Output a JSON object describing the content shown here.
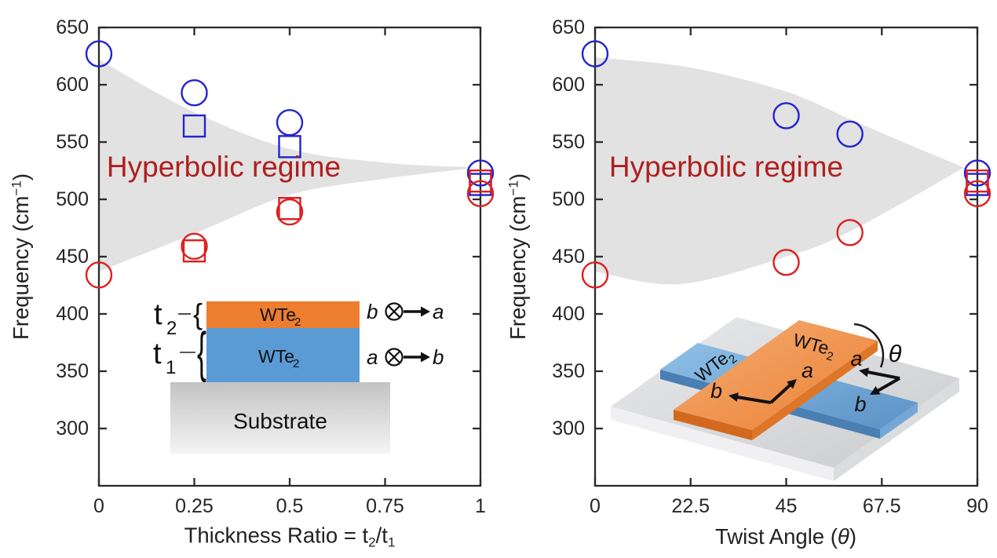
{
  "figure": {
    "band_color": "#E2E2E2",
    "regime_color": "#B01E1E",
    "marker_colors": {
      "blue": "#2323D0",
      "red": "#DE1E1E"
    },
    "axis_color": "#2B2B2B"
  },
  "chart_data": [
    {
      "type": "scatter",
      "panel": "left",
      "regime_label": "Hyperbolic regime",
      "xlabel_parts": [
        {
          "t": "Thickness Ratio = t"
        },
        {
          "t": "2",
          "style": "sub"
        },
        {
          "t": "/t"
        },
        {
          "t": "1",
          "style": "sub"
        }
      ],
      "ylabel_parts": [
        {
          "t": "Frequency (cm"
        },
        {
          "t": "−1",
          "style": "sup"
        },
        {
          "t": ")"
        }
      ],
      "xlim": [
        0,
        1
      ],
      "ylim": [
        250,
        650
      ],
      "grid": false,
      "legend": false,
      "xticks": [
        {
          "v": 0,
          "label": "0"
        },
        {
          "v": 0.25,
          "label": "0.25"
        },
        {
          "v": 0.5,
          "label": "0.5"
        },
        {
          "v": 0.75,
          "label": "0.75"
        },
        {
          "v": 1,
          "label": "1"
        }
      ],
      "yticks": [
        {
          "v": 300,
          "label": "300"
        },
        {
          "v": 350,
          "label": "350"
        },
        {
          "v": 400,
          "label": "400"
        },
        {
          "v": 450,
          "label": "450"
        },
        {
          "v": 500,
          "label": "500"
        },
        {
          "v": 550,
          "label": "550"
        },
        {
          "v": 600,
          "label": "600"
        },
        {
          "v": 650,
          "label": "650"
        }
      ],
      "series": [
        {
          "name": "blue-squares",
          "marker": "square",
          "color": "blue",
          "points": [
            [
              0.25,
              564
            ],
            [
              0.5,
              546
            ],
            [
              1,
              513
            ]
          ]
        },
        {
          "name": "blue-circles",
          "marker": "circle",
          "color": "blue",
          "points": [
            [
              0,
              627
            ],
            [
              0.25,
              593
            ],
            [
              0.5,
              567
            ],
            [
              1,
              523
            ]
          ]
        },
        {
          "name": "red-squares",
          "marker": "square",
          "color": "red",
          "points": [
            [
              0.25,
              455
            ],
            [
              0.5,
              492
            ],
            [
              1,
              516
            ]
          ]
        },
        {
          "name": "red-circles",
          "marker": "circle",
          "color": "red",
          "points": [
            [
              0,
              434
            ],
            [
              0.25,
              459
            ],
            [
              0.5,
              489
            ],
            [
              1,
              505
            ]
          ]
        }
      ],
      "band": {
        "top": [
          [
            0,
            622
          ],
          [
            0.25,
            576
          ],
          [
            0.5,
            544
          ],
          [
            0.75,
            532
          ],
          [
            0.97,
            528
          ]
        ],
        "bottom": [
          [
            0,
            437
          ],
          [
            0.25,
            470
          ],
          [
            0.5,
            504
          ],
          [
            0.75,
            518
          ],
          [
            0.97,
            527
          ]
        ]
      }
    },
    {
      "type": "scatter",
      "panel": "right",
      "regime_label": "Hyperbolic regime",
      "xlabel_parts": [
        {
          "t": "Twist Angle ("
        },
        {
          "t": "θ",
          "style": "italic"
        },
        {
          "t": ")"
        }
      ],
      "ylabel_parts": [
        {
          "t": "Frequency (cm"
        },
        {
          "t": "−1",
          "style": "sup"
        },
        {
          "t": ")"
        }
      ],
      "xlim": [
        0,
        90
      ],
      "ylim": [
        250,
        650
      ],
      "grid": false,
      "legend": false,
      "xticks": [
        {
          "v": 0,
          "label": "0"
        },
        {
          "v": 22.5,
          "label": "22.5"
        },
        {
          "v": 45,
          "label": "45"
        },
        {
          "v": 67.5,
          "label": "67.5"
        },
        {
          "v": 90,
          "label": "90"
        }
      ],
      "yticks": [
        {
          "v": 300,
          "label": "300"
        },
        {
          "v": 350,
          "label": "350"
        },
        {
          "v": 400,
          "label": "400"
        },
        {
          "v": 450,
          "label": "450"
        },
        {
          "v": 500,
          "label": "500"
        },
        {
          "v": 550,
          "label": "550"
        },
        {
          "v": 600,
          "label": "600"
        },
        {
          "v": 650,
          "label": "650"
        }
      ],
      "series": [
        {
          "name": "blue-squares",
          "marker": "square",
          "color": "blue",
          "points": [
            [
              90,
              513
            ]
          ]
        },
        {
          "name": "blue-circles",
          "marker": "circle",
          "color": "blue",
          "points": [
            [
              0,
              627
            ],
            [
              45,
              573
            ],
            [
              60,
              557
            ],
            [
              90,
              523
            ]
          ]
        },
        {
          "name": "red-squares",
          "marker": "square",
          "color": "red",
          "points": [
            [
              90,
              516
            ]
          ]
        },
        {
          "name": "red-circles",
          "marker": "circle",
          "color": "red",
          "points": [
            [
              0,
              434
            ],
            [
              45,
              445
            ],
            [
              60,
              471
            ],
            [
              90,
              505
            ]
          ]
        }
      ],
      "band": {
        "top": [
          [
            0,
            624
          ],
          [
            22.5,
            615
          ],
          [
            45,
            594
          ],
          [
            60,
            570
          ],
          [
            75,
            546
          ],
          [
            86,
            529
          ]
        ],
        "bottom": [
          [
            0,
            437
          ],
          [
            20,
            426
          ],
          [
            45,
            450
          ],
          [
            60,
            472
          ],
          [
            86,
            526
          ]
        ]
      }
    }
  ],
  "inset_left": {
    "t2": {
      "main": "t",
      "sub": "2"
    },
    "t1": {
      "main": "t",
      "sub": "1"
    },
    "top_layer": {
      "main": "WTe",
      "sub": "2"
    },
    "bottom_layer": {
      "main": "WTe",
      "sub": "2"
    },
    "substrate": "Substrate",
    "row_top": {
      "left": "b",
      "right": "a"
    },
    "row_bottom": {
      "left": "a",
      "right": "b"
    }
  },
  "inset_right": {
    "slab_orange": {
      "main": "WTe",
      "sub": "2"
    },
    "slab_blue": {
      "main": "WTe",
      "sub": "2"
    },
    "orange_axes": {
      "a": "a",
      "b": "b"
    },
    "blue_axes": {
      "a": "a",
      "b": "b"
    },
    "theta": "θ"
  }
}
